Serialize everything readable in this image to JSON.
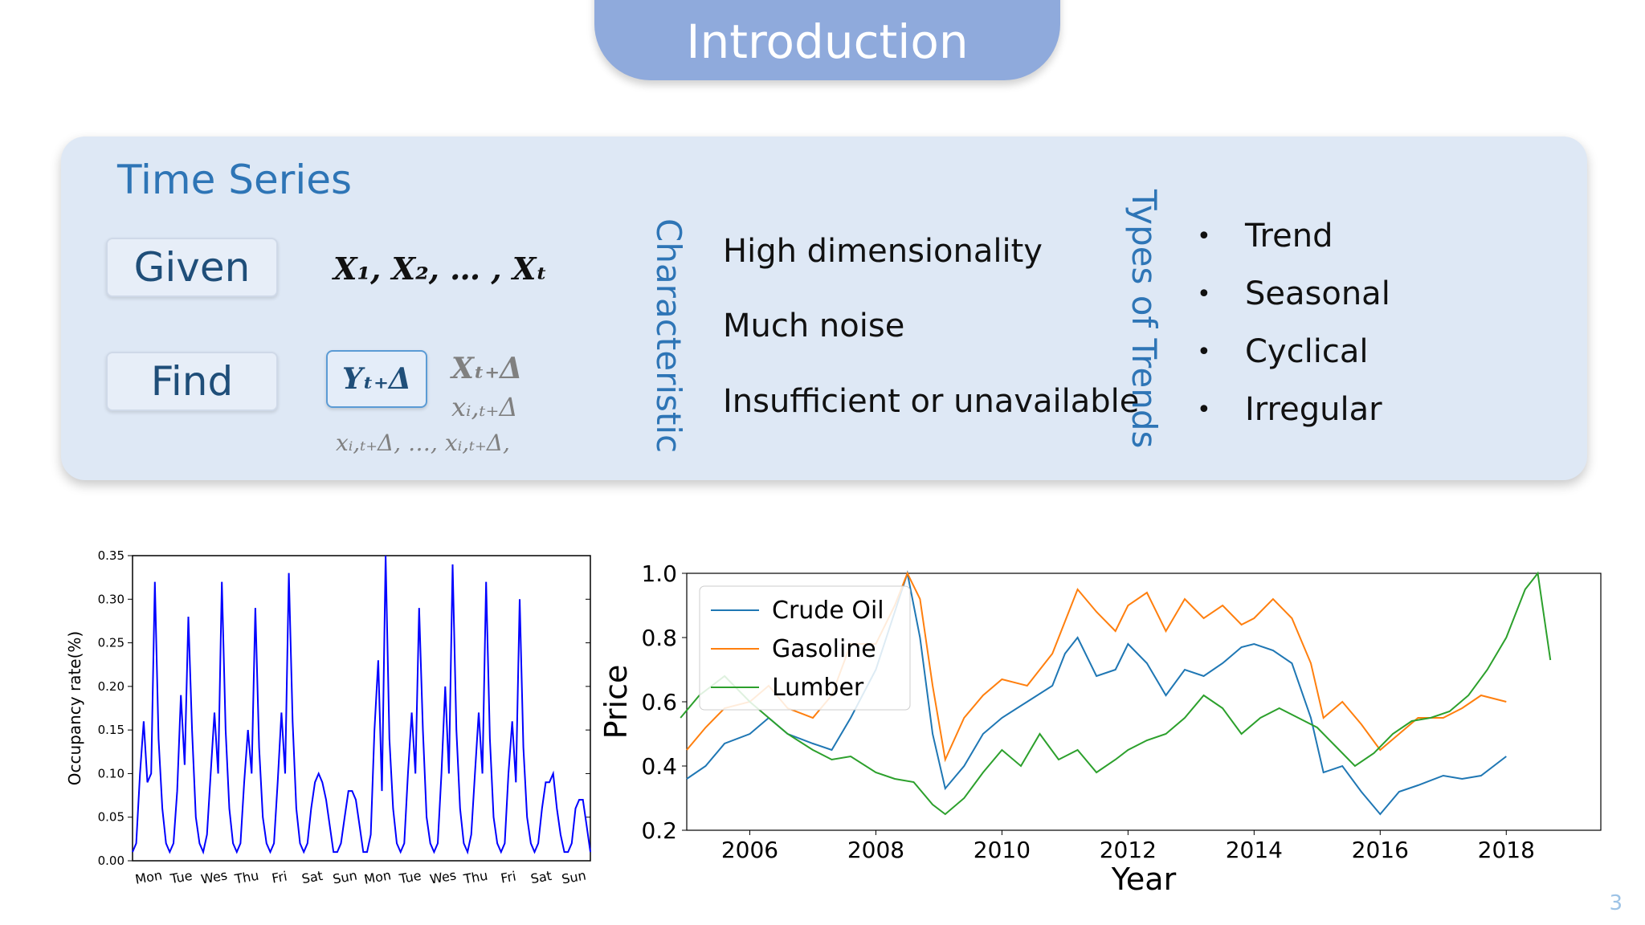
{
  "slide": {
    "title": "Introduction",
    "page_number": "3"
  },
  "panel": {
    "heading": "Time Series",
    "given_label": "Given",
    "given_math": "X₁, X₂, … , Xₜ",
    "find_label": "Find",
    "find_target": "Yₜ₊Δ",
    "find_x": "Xₜ₊Δ",
    "find_xi": "xᵢ,ₜ₊Δ",
    "find_xlist": "xᵢ,ₜ₊Δ, …, xᵢ,ₜ₊Δ,",
    "characteristic_label": "Characteristic",
    "characteristics": [
      "High dimensionality",
      "Much noise",
      "Insufficient or unavailable"
    ],
    "trends_label": "Types of Trends",
    "trends": [
      "Trend",
      "Seasonal",
      "Cyclical",
      "Irregular"
    ]
  },
  "chart_data": [
    {
      "type": "line",
      "ylabel": "Occupancy rate(%)",
      "xlabel": "",
      "ylim": [
        0,
        0.35
      ],
      "yticks": [
        "0.00",
        "0.05",
        "0.10",
        "0.15",
        "0.20",
        "0.25",
        "0.30",
        "0.35"
      ],
      "xticks": [
        "Mon",
        "Tue",
        "Wes",
        "Thu",
        "Fri",
        "Sat",
        "Sun",
        "Mon",
        "Tue",
        "Wes",
        "Thu",
        "Fri",
        "Sat",
        "Sun"
      ],
      "color": "#0000ff",
      "series": [
        {
          "values": [
            0.01,
            0.02,
            0.1,
            0.16,
            0.09,
            0.1,
            0.32,
            0.14,
            0.06,
            0.02,
            0.01,
            0.02,
            0.08,
            0.19,
            0.11,
            0.28,
            0.15,
            0.05,
            0.02,
            0.01,
            0.03,
            0.1,
            0.17,
            0.1,
            0.32,
            0.15,
            0.06,
            0.02,
            0.01,
            0.02,
            0.09,
            0.15,
            0.1,
            0.29,
            0.13,
            0.05,
            0.02,
            0.01,
            0.02,
            0.09,
            0.17,
            0.1,
            0.33,
            0.16,
            0.06,
            0.02,
            0.01,
            0.02,
            0.06,
            0.09,
            0.1,
            0.09,
            0.07,
            0.04,
            0.01,
            0.01,
            0.02,
            0.05,
            0.08,
            0.08,
            0.07,
            0.04,
            0.01,
            0.01,
            0.03,
            0.15,
            0.23,
            0.08,
            0.36,
            0.14,
            0.06,
            0.02,
            0.01,
            0.02,
            0.1,
            0.17,
            0.1,
            0.29,
            0.15,
            0.05,
            0.02,
            0.01,
            0.02,
            0.1,
            0.2,
            0.1,
            0.34,
            0.15,
            0.06,
            0.02,
            0.01,
            0.03,
            0.1,
            0.17,
            0.1,
            0.32,
            0.14,
            0.05,
            0.02,
            0.01,
            0.02,
            0.1,
            0.16,
            0.09,
            0.3,
            0.13,
            0.05,
            0.02,
            0.01,
            0.02,
            0.06,
            0.09,
            0.09,
            0.1,
            0.06,
            0.03,
            0.01,
            0.01,
            0.02,
            0.06,
            0.07,
            0.07,
            0.04,
            0.01
          ]
        }
      ]
    },
    {
      "type": "line",
      "xlabel": "Year",
      "ylabel": "Price",
      "xlim": [
        2005,
        2019.5
      ],
      "ylim": [
        0.2,
        1.0
      ],
      "xticks": [
        2006,
        2008,
        2010,
        2012,
        2014,
        2016,
        2018
      ],
      "yticks": [
        "0.2",
        "0.4",
        "0.6",
        "0.8",
        "1.0"
      ],
      "legend": "top-left",
      "series": [
        {
          "name": "Crude Oil",
          "color": "#1f77b4",
          "x": [
            2005.0,
            2005.3,
            2005.6,
            2006.0,
            2006.3,
            2006.6,
            2007.0,
            2007.3,
            2007.6,
            2008.0,
            2008.3,
            2008.5,
            2008.7,
            2008.9,
            2009.1,
            2009.4,
            2009.7,
            2010.0,
            2010.4,
            2010.8,
            2011.0,
            2011.2,
            2011.5,
            2011.8,
            2012.0,
            2012.3,
            2012.6,
            2012.9,
            2013.2,
            2013.5,
            2013.8,
            2014.0,
            2014.3,
            2014.6,
            2014.9,
            2015.1,
            2015.4,
            2015.7,
            2016.0,
            2016.3,
            2016.6,
            2017.0,
            2017.3,
            2017.6,
            2018.0
          ],
          "values": [
            0.36,
            0.4,
            0.47,
            0.5,
            0.55,
            0.5,
            0.47,
            0.45,
            0.55,
            0.7,
            0.88,
            1.0,
            0.8,
            0.5,
            0.33,
            0.4,
            0.5,
            0.55,
            0.6,
            0.65,
            0.75,
            0.8,
            0.68,
            0.7,
            0.78,
            0.72,
            0.62,
            0.7,
            0.68,
            0.72,
            0.77,
            0.78,
            0.76,
            0.72,
            0.55,
            0.38,
            0.4,
            0.32,
            0.25,
            0.32,
            0.34,
            0.37,
            0.36,
            0.37,
            0.43
          ]
        },
        {
          "name": "Gasoline",
          "color": "#ff7f0e",
          "x": [
            2005.0,
            2005.3,
            2005.6,
            2006.0,
            2006.3,
            2006.6,
            2007.0,
            2007.3,
            2007.6,
            2008.0,
            2008.3,
            2008.5,
            2008.7,
            2008.9,
            2009.1,
            2009.4,
            2009.7,
            2010.0,
            2010.4,
            2010.8,
            2011.0,
            2011.2,
            2011.5,
            2011.8,
            2012.0,
            2012.3,
            2012.6,
            2012.9,
            2013.2,
            2013.5,
            2013.8,
            2014.0,
            2014.3,
            2014.6,
            2014.9,
            2015.1,
            2015.4,
            2015.7,
            2016.0,
            2016.3,
            2016.6,
            2017.0,
            2017.3,
            2017.6,
            2018.0
          ],
          "values": [
            0.45,
            0.52,
            0.58,
            0.6,
            0.65,
            0.58,
            0.55,
            0.62,
            0.78,
            0.78,
            0.9,
            1.0,
            0.92,
            0.65,
            0.42,
            0.55,
            0.62,
            0.67,
            0.65,
            0.75,
            0.85,
            0.95,
            0.88,
            0.82,
            0.9,
            0.94,
            0.82,
            0.92,
            0.86,
            0.9,
            0.84,
            0.86,
            0.92,
            0.86,
            0.72,
            0.55,
            0.6,
            0.53,
            0.45,
            0.5,
            0.55,
            0.55,
            0.58,
            0.62,
            0.6
          ]
        },
        {
          "name": "Lumber",
          "color": "#2ca02c",
          "x": [
            2004.9,
            2005.2,
            2005.6,
            2006.0,
            2006.3,
            2006.6,
            2007.0,
            2007.3,
            2007.6,
            2008.0,
            2008.3,
            2008.6,
            2008.9,
            2009.1,
            2009.4,
            2009.7,
            2010.0,
            2010.3,
            2010.6,
            2010.9,
            2011.2,
            2011.5,
            2011.8,
            2012.0,
            2012.3,
            2012.6,
            2012.9,
            2013.2,
            2013.5,
            2013.8,
            2014.1,
            2014.4,
            2014.7,
            2015.0,
            2015.3,
            2015.6,
            2015.9,
            2016.2,
            2016.5,
            2016.8,
            2017.1,
            2017.4,
            2017.7,
            2018.0,
            2018.3,
            2018.5,
            2018.7
          ],
          "values": [
            0.55,
            0.62,
            0.68,
            0.6,
            0.55,
            0.5,
            0.45,
            0.42,
            0.43,
            0.38,
            0.36,
            0.35,
            0.28,
            0.25,
            0.3,
            0.38,
            0.45,
            0.4,
            0.5,
            0.42,
            0.45,
            0.38,
            0.42,
            0.45,
            0.48,
            0.5,
            0.55,
            0.62,
            0.58,
            0.5,
            0.55,
            0.58,
            0.55,
            0.52,
            0.46,
            0.4,
            0.44,
            0.5,
            0.54,
            0.55,
            0.57,
            0.62,
            0.7,
            0.8,
            0.95,
            1.0,
            0.73
          ]
        }
      ]
    }
  ]
}
